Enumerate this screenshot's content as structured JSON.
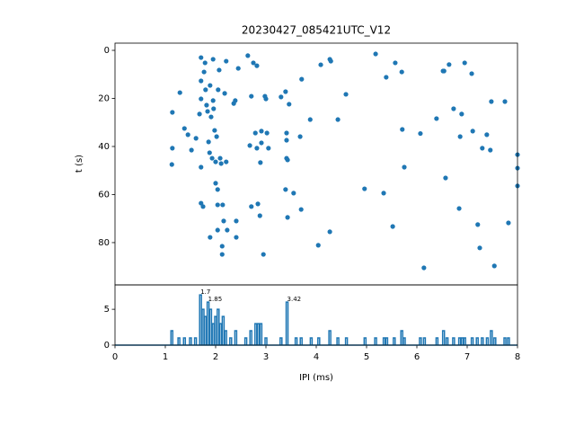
{
  "chart_data": [
    {
      "type": "scatter",
      "title": "20230427_085421UTC_V12",
      "y_label": "t (s)",
      "color": "#1f77b4",
      "xlim": [
        0,
        8
      ],
      "ylim": [
        97.6,
        -3
      ],
      "yticks": [
        0,
        20,
        40,
        60,
        80
      ],
      "x": [
        1.14,
        1.14,
        1.13,
        1.29,
        1.38,
        1.45,
        1.52,
        1.61,
        1.68,
        1.71,
        1.71,
        1.71,
        1.71,
        1.71,
        1.75,
        1.77,
        1.79,
        1.8,
        1.82,
        1.84,
        1.86,
        1.88,
        1.89,
        1.91,
        1.93,
        1.95,
        1.95,
        1.96,
        1.98,
        2.0,
        2.0,
        2.02,
        2.04,
        2.04,
        2.04,
        2.05,
        2.07,
        2.09,
        2.11,
        2.13,
        2.13,
        2.14,
        2.16,
        2.18,
        2.21,
        2.21,
        2.23,
        2.36,
        2.39,
        2.41,
        2.41,
        2.45,
        1.89,
        2.64,
        2.68,
        2.71,
        2.75,
        2.71,
        2.79,
        2.82,
        2.82,
        2.84,
        2.88,
        2.89,
        2.91,
        2.91,
        2.95,
        2.98,
        3.0,
        3.02,
        3.05,
        3.3,
        3.39,
        3.41,
        3.41,
        3.41,
        3.43,
        3.39,
        3.43,
        3.46,
        3.55,
        3.68,
        3.7,
        3.71,
        3.88,
        4.04,
        4.09,
        4.27,
        4.29,
        4.27,
        4.43,
        4.59,
        4.96,
        5.18,
        5.34,
        5.39,
        5.52,
        5.57,
        5.7,
        5.71,
        5.75,
        6.07,
        6.14,
        6.39,
        6.52,
        6.54,
        6.57,
        6.64,
        6.73,
        6.84,
        6.86,
        6.89,
        6.95,
        7.09,
        7.11,
        7.21,
        7.25,
        7.3,
        7.39,
        7.46,
        7.48,
        7.54,
        7.75,
        7.82,
        8.0,
        8.0,
        8.0
      ],
      "values": [
        25.8,
        40.7,
        47.5,
        17.6,
        32.5,
        35.1,
        41.5,
        36.6,
        26.5,
        3,
        12.7,
        20.2,
        48.6,
        63.6,
        65,
        9,
        5.2,
        16.4,
        22.8,
        25.4,
        38.1,
        42.6,
        14.6,
        27.7,
        44.9,
        3.7,
        20.9,
        24.3,
        33.3,
        46.4,
        55.3,
        35.9,
        57.9,
        64.3,
        74.8,
        16.4,
        8.2,
        44.9,
        47.1,
        81.5,
        84.9,
        64.3,
        71,
        17.9,
        46.4,
        4.5,
        74.8,
        22.1,
        20.9,
        71,
        77.8,
        7.5,
        77.8,
        2.2,
        39.6,
        19.1,
        5.2,
        65,
        34.4,
        6.4,
        40.7,
        63.9,
        68.8,
        46.7,
        33.6,
        38.5,
        84.9,
        19.1,
        20.2,
        34.4,
        40.7,
        19.4,
        17.2,
        34.4,
        37.4,
        44.9,
        45.6,
        57.9,
        69.5,
        22.4,
        59.4,
        35.9,
        66.2,
        12,
        28.8,
        81.1,
        6,
        3.7,
        4.5,
        75.5,
        28.8,
        18.3,
        57.6,
        1.5,
        59.4,
        11.2,
        73.3,
        5.2,
        9,
        32.9,
        48.6,
        34.6,
        90.5,
        28.4,
        8.6,
        8.6,
        53.1,
        5.9,
        24.3,
        65.8,
        35.9,
        26.5,
        5.2,
        9.7,
        33.6,
        72.5,
        82.2,
        40.7,
        35.1,
        41.5,
        21.3,
        89.7,
        21.3,
        71.8,
        43.4,
        49,
        56.4
      ]
    },
    {
      "type": "line",
      "x_label": "IPI (ms)",
      "color": "#1f77b4",
      "xlim": [
        0,
        8
      ],
      "ylim": [
        0,
        8.4
      ],
      "xticks": [
        0,
        1,
        2,
        3,
        4,
        5,
        6,
        7,
        8
      ],
      "yticks": [
        0,
        5
      ],
      "x": [
        1.13,
        1.27,
        1.38,
        1.5,
        1.6,
        1.7,
        1.75,
        1.8,
        1.85,
        1.9,
        1.95,
        2.0,
        2.05,
        2.1,
        2.15,
        2.2,
        2.3,
        2.4,
        2.6,
        2.7,
        2.8,
        2.85,
        2.9,
        3.0,
        3.3,
        3.42,
        3.6,
        3.7,
        3.9,
        4.05,
        4.27,
        4.43,
        4.6,
        4.97,
        5.18,
        5.35,
        5.4,
        5.55,
        5.7,
        5.75,
        6.07,
        6.15,
        6.4,
        6.53,
        6.6,
        6.73,
        6.85,
        6.9,
        6.95,
        7.1,
        7.2,
        7.3,
        7.4,
        7.48,
        7.55,
        7.75,
        7.82
      ],
      "values": [
        2,
        1,
        1,
        1,
        1,
        7,
        5,
        4,
        6,
        5,
        3,
        4,
        5,
        3,
        4,
        2,
        1,
        2,
        1,
        2,
        3,
        3,
        3,
        1,
        1,
        6,
        1,
        1,
        1,
        1,
        2,
        1,
        1,
        1,
        1,
        1,
        1,
        1,
        2,
        1,
        1,
        1,
        1,
        2,
        1,
        1,
        1,
        1,
        1,
        1,
        1,
        1,
        1,
        2,
        1,
        1,
        1
      ],
      "annotations": [
        {
          "text": "1.7",
          "x": 1.7,
          "y": 7
        },
        {
          "text": "1.85",
          "x": 1.85,
          "y": 6
        },
        {
          "text": "3.42",
          "x": 3.42,
          "y": 6
        }
      ]
    }
  ]
}
